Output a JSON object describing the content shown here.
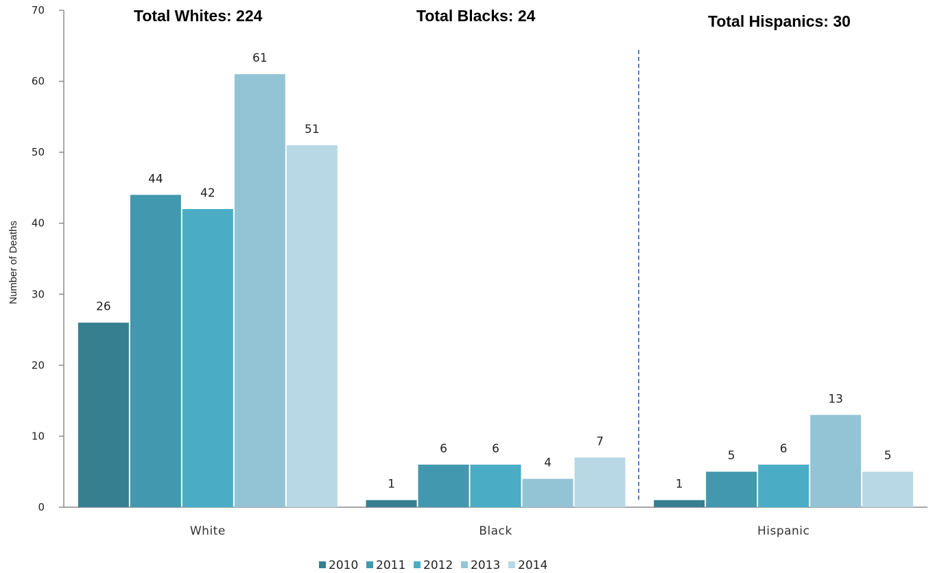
{
  "chart_data": {
    "type": "bar",
    "categories": [
      "White",
      "Black",
      "Hispanic"
    ],
    "series": [
      {
        "name": "2010",
        "values": [
          26,
          1,
          1
        ],
        "color": "#367f91"
      },
      {
        "name": "2011",
        "values": [
          44,
          6,
          5
        ],
        "color": "#4298ae"
      },
      {
        "name": "2012",
        "values": [
          42,
          6,
          6
        ],
        "color": "#4bacc6"
      },
      {
        "name": "2013",
        "values": [
          61,
          4,
          13
        ],
        "color": "#93c4d5"
      },
      {
        "name": "2014",
        "values": [
          51,
          7,
          5
        ],
        "color": "#b7d8e4"
      }
    ],
    "ylabel": "Number of Deaths",
    "ylim": [
      0,
      70
    ],
    "yticks": [
      0,
      10,
      20,
      30,
      40,
      50,
      60,
      70
    ],
    "data_labels": true,
    "legend_position": "bottom",
    "grid": false,
    "annotations": [
      "Total Whites: 224",
      "Total Blacks: 24",
      "Total Hispanics: 30"
    ]
  }
}
